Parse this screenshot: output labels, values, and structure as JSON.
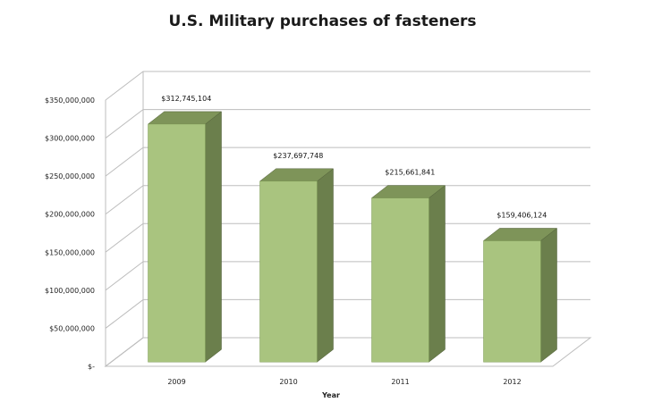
{
  "chart_data": {
    "type": "bar",
    "title": "U.S. Military purchases of fasteners",
    "xlabel": "Year",
    "ylabel": "",
    "categories": [
      "2009",
      "2010",
      "2011",
      "2012"
    ],
    "values": [
      312745104,
      237697748,
      215661841,
      159406124
    ],
    "data_labels": [
      "$312,745,104",
      "$237,697,748",
      "$215,661,841",
      "$159,406,124"
    ],
    "ylim": [
      0,
      350000000
    ],
    "yticks": [
      0,
      50000000,
      100000000,
      150000000,
      200000000,
      250000000,
      300000000,
      350000000
    ],
    "ytick_labels": [
      "$-",
      "$50,000,000",
      "$100,000,000",
      "$150,000,000",
      "$200,000,000",
      "$250,000,000",
      "$300,000,000",
      "$350,000,000"
    ],
    "grid": true,
    "legend": "none",
    "style": "3d-column",
    "colors": {
      "front": "#a9c47f",
      "side": "#6b7f4c",
      "top": "#7e9459",
      "grid": "#bdbdbd"
    }
  }
}
